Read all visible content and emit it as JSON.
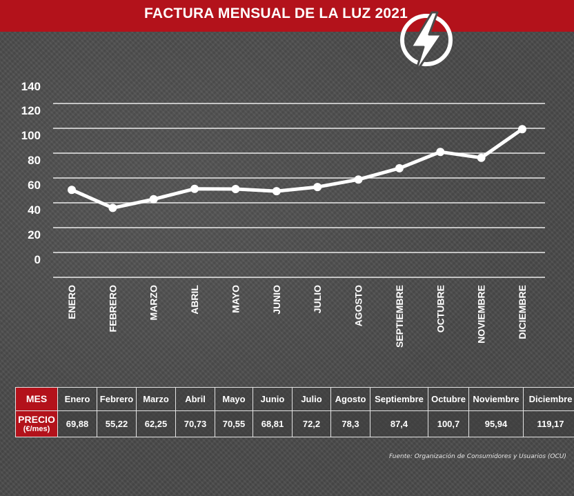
{
  "title": "FACTURA MENSUAL DE LA LUZ 2021",
  "chart_data": {
    "type": "line",
    "title": "FACTURA MENSUAL DE LA LUZ 2021",
    "xlabel": "",
    "ylabel": "",
    "y_tick_labels": [
      "0",
      "20",
      "40",
      "60",
      "80",
      "100",
      "120",
      "140"
    ],
    "categories": [
      "ENERO",
      "FEBRERO",
      "MARZO",
      "ABRIL",
      "MAYO",
      "JUNIO",
      "JULIO",
      "AGOSTO",
      "SEPTIEMBRE",
      "OCTUBRE",
      "NOVIEMBRE",
      "DICIEMBRE"
    ],
    "values": [
      69.88,
      55.22,
      62.25,
      70.73,
      70.55,
      68.81,
      72.2,
      78.3,
      87.4,
      100.7,
      95.94,
      119.17
    ],
    "ylim": [
      0,
      140
    ],
    "grid": true,
    "legend": "none",
    "line_color": "#ffffff"
  },
  "table": {
    "row1_header": "MES",
    "row2_header_main": "PRECIO",
    "row2_header_sub": "(€/mes)",
    "months": [
      "Enero",
      "Febrero",
      "Marzo",
      "Abril",
      "Mayo",
      "Junio",
      "Julio",
      "Agosto",
      "Septiembre",
      "Octubre",
      "Noviembre",
      "Diciembre"
    ],
    "prices": [
      "69,88",
      "55,22",
      "62,25",
      "70,73",
      "70,55",
      "68,81",
      "72,2",
      "78,3",
      "87,4",
      "100,7",
      "95,94",
      "119,17"
    ]
  },
  "source": "Fuente: Organización de Consumidores y Usuarios (OCU)",
  "colors": {
    "accent": "#b3121b",
    "background": "#4b4b4b",
    "line": "#ffffff"
  },
  "icons": {
    "logo": "lightning-bolt-icon"
  }
}
